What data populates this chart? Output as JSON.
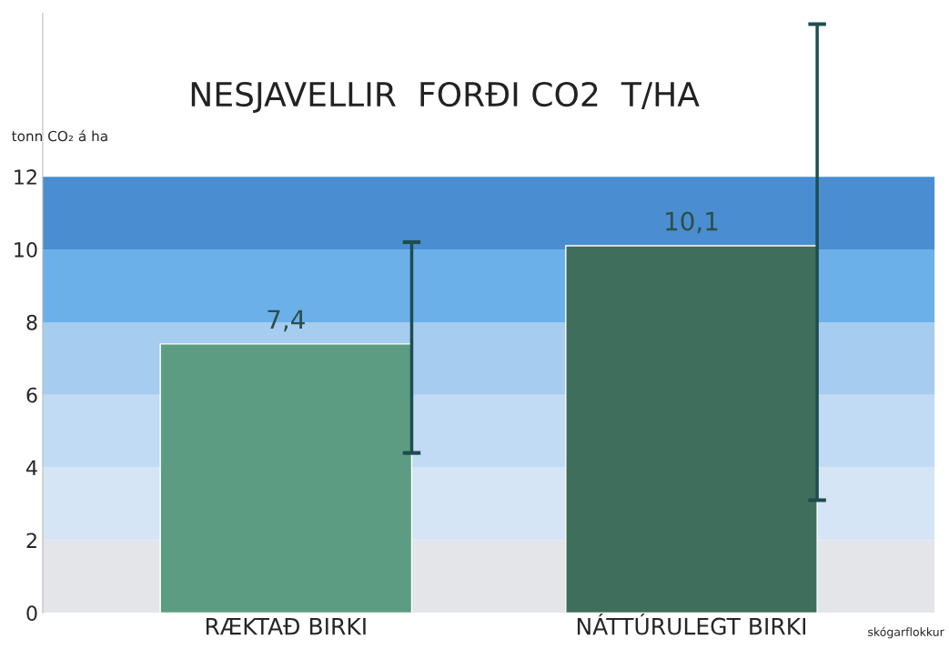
{
  "chart_data": {
    "type": "bar",
    "title": "NESJAVELLIR  FORÐI CO2  T/HA",
    "ylabel": "tonn CO₂ á ha",
    "categories": [
      "RÆKTAÐ BIRKI",
      "NÁTTÚRULEGT BIRKI"
    ],
    "values": [
      7.4,
      10.1
    ],
    "colors": [
      "#5c9c82",
      "#3f6f5c"
    ],
    "value_labels": [
      "7,4",
      "10,1"
    ],
    "errors": [
      [
        4.4,
        10.2
      ],
      [
        3.1,
        16.2
      ]
    ],
    "ylim": [
      0,
      16.5
    ],
    "yticks": [
      0,
      2,
      4,
      6,
      8,
      10,
      12
    ],
    "bands": [
      {
        "axis": "y",
        "from": 0,
        "to": 2,
        "color": "#e3e5e9"
      },
      {
        "axis": "y",
        "from": 2,
        "to": 4,
        "color": "#d6e5f5"
      },
      {
        "axis": "y",
        "from": 4,
        "to": 6,
        "color": "#c0dbf3"
      },
      {
        "axis": "y",
        "from": 6,
        "to": 8,
        "color": "#a6ccef"
      },
      {
        "axis": "y",
        "from": 8,
        "to": 10,
        "color": "#6cb0ea"
      },
      {
        "axis": "y",
        "from": 10,
        "to": 12,
        "color": "#4a8ed1"
      }
    ],
    "annotations": [
      "skógarflokkur"
    ],
    "grid": false,
    "legend": false
  }
}
